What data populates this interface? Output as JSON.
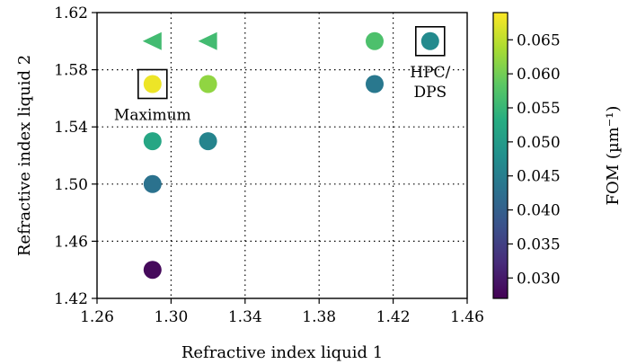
{
  "chart_data": {
    "type": "scatter",
    "xlabel": "Refractive index liquid 1",
    "ylabel": "Refractive index liquid 2",
    "xlim": [
      1.26,
      1.46
    ],
    "ylim": [
      1.42,
      1.62
    ],
    "xticks": [
      "1.26",
      "1.30",
      "1.34",
      "1.38",
      "1.42",
      "1.46"
    ],
    "yticks": [
      "1.42",
      "1.46",
      "1.50",
      "1.54",
      "1.58",
      "1.62"
    ],
    "grid": "dotted",
    "colorbar": {
      "label": "FOM (µm⁻¹)",
      "range": [
        0.027,
        0.069
      ],
      "colormap": "viridis",
      "ticks": [
        "0.030",
        "0.035",
        "0.040",
        "0.045",
        "0.050",
        "0.055",
        "0.060",
        "0.065"
      ]
    },
    "points": [
      {
        "x": 1.29,
        "y": 1.6,
        "fom": 0.056,
        "marker": "triangle-left"
      },
      {
        "x": 1.32,
        "y": 1.6,
        "fom": 0.056,
        "marker": "triangle-left"
      },
      {
        "x": 1.41,
        "y": 1.6,
        "fom": 0.057,
        "marker": "circle"
      },
      {
        "x": 1.44,
        "y": 1.6,
        "fom": 0.047,
        "marker": "circle",
        "boxed": true
      },
      {
        "x": 1.29,
        "y": 1.57,
        "fom": 0.068,
        "marker": "circle",
        "boxed": true
      },
      {
        "x": 1.32,
        "y": 1.57,
        "fom": 0.062,
        "marker": "circle"
      },
      {
        "x": 1.41,
        "y": 1.57,
        "fom": 0.044,
        "marker": "circle"
      },
      {
        "x": 1.29,
        "y": 1.53,
        "fom": 0.052,
        "marker": "circle"
      },
      {
        "x": 1.32,
        "y": 1.53,
        "fom": 0.046,
        "marker": "circle"
      },
      {
        "x": 1.29,
        "y": 1.5,
        "fom": 0.043,
        "marker": "circle"
      },
      {
        "x": 1.29,
        "y": 1.44,
        "fom": 0.028,
        "marker": "circle"
      }
    ],
    "annotations": [
      {
        "lines": [
          "Maximum"
        ],
        "x": 1.29,
        "y": 1.57,
        "placement": "below"
      },
      {
        "lines": [
          "HPC/",
          "DPS"
        ],
        "x": 1.44,
        "y": 1.6,
        "placement": "below"
      }
    ]
  }
}
